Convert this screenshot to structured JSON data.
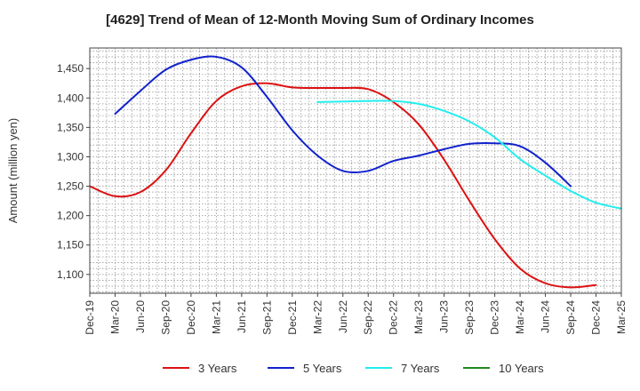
{
  "chart_data": {
    "type": "line",
    "title": "[4629]  Trend of Mean of 12-Month Moving Sum of Ordinary Incomes",
    "xlabel": "",
    "ylabel": "Amount (million yen)",
    "ylim": [
      1068,
      1485
    ],
    "y_ticks": [
      1100,
      1150,
      1200,
      1250,
      1300,
      1350,
      1400,
      1450
    ],
    "y_tick_labels": [
      "1,100",
      "1,150",
      "1,200",
      "1,250",
      "1,300",
      "1,350",
      "1,400",
      "1,450"
    ],
    "x_tick_labels": [
      "Dec-19",
      "Mar-20",
      "Jun-20",
      "Sep-20",
      "Dec-20",
      "Mar-21",
      "Jun-21",
      "Sep-21",
      "Dec-21",
      "Mar-22",
      "Jun-22",
      "Sep-22",
      "Dec-22",
      "Mar-23",
      "Jun-23",
      "Sep-23",
      "Dec-23",
      "Mar-24",
      "Jun-24",
      "Sep-24",
      "Dec-24",
      "Mar-25"
    ],
    "grid": true,
    "legend_position": "bottom",
    "series": [
      {
        "name": "3 Years",
        "color": "#dd1111",
        "start_index": 0,
        "values": [
          1250,
          1233,
          1240,
          1277,
          1340,
          1395,
          1420,
          1425,
          1418,
          1417,
          1417,
          1415,
          1393,
          1355,
          1295,
          1225,
          1160,
          1110,
          1085,
          1078,
          1082
        ]
      },
      {
        "name": "5 Years",
        "color": "#1122cc",
        "start_index": 1,
        "values": [
          1373,
          1412,
          1448,
          1465,
          1470,
          1452,
          1402,
          1345,
          1302,
          1276,
          1276,
          1293,
          1302,
          1313,
          1322,
          1323,
          1318,
          1290,
          1250
        ]
      },
      {
        "name": "7 Years",
        "color": "#22eeee",
        "start_index": 9,
        "values": [
          1393,
          1394,
          1395,
          1395,
          1390,
          1378,
          1360,
          1333,
          1296,
          1268,
          1242,
          1222,
          1212
        ]
      },
      {
        "name": "10 Years",
        "color": "#228822",
        "start_index": 0,
        "values": []
      }
    ]
  }
}
